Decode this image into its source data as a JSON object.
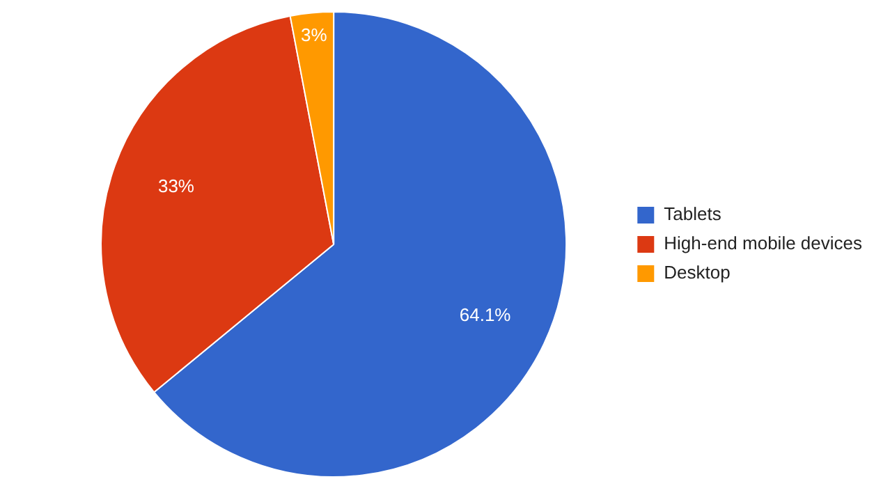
{
  "chart_data": {
    "type": "pie",
    "categories": [
      "Tablets",
      "High-end mobile devices",
      "Desktop"
    ],
    "values": [
      64.1,
      33,
      3
    ],
    "colors": [
      "#3366cc",
      "#dc3912",
      "#ff9900"
    ],
    "value_labels": [
      "64.1%",
      "33%",
      "3%"
    ],
    "legend": "right"
  }
}
